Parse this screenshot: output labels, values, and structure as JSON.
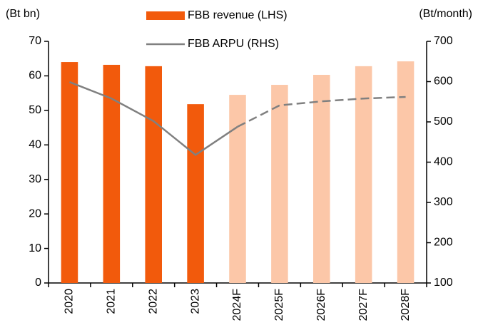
{
  "chart_data": {
    "type": "bar_line",
    "y_label": "(Bt bn)",
    "y2_label": "(Bt/month)",
    "categories": [
      "2020",
      "2021",
      "2022",
      "2023",
      "2024F",
      "2025F",
      "2026F",
      "2027F",
      "2028F"
    ],
    "series": [
      {
        "name": "FBB revenue (LHS)",
        "type": "bar",
        "color": "#f25a0c",
        "forecast_color": "#fcc7a8",
        "forecast_from": "2024F",
        "values": [
          64.0,
          63.2,
          62.8,
          51.8,
          54.5,
          57.4,
          60.3,
          62.8,
          64.2
        ]
      },
      {
        "name": "FBB ARPU (RHS)",
        "type": "line",
        "axis": "y2",
        "color": "#808080",
        "dashed_from": "2024F",
        "values": [
          599,
          558,
          502,
          418,
          488,
          541,
          551,
          558,
          562
        ]
      }
    ],
    "ylim": [
      0,
      70
    ],
    "yticks": [
      0,
      10,
      20,
      30,
      40,
      50,
      60,
      70
    ],
    "y2lim": [
      100,
      700
    ],
    "y2ticks": [
      100,
      200,
      300,
      400,
      500,
      600,
      700
    ],
    "grid": false,
    "legend": "top"
  }
}
